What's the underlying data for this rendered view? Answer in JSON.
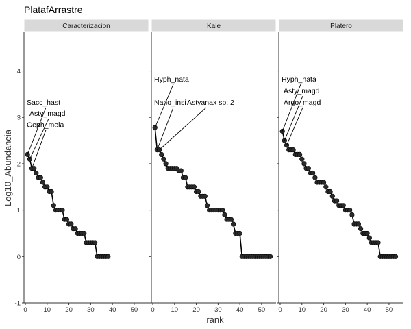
{
  "chart_data": {
    "type": "line",
    "title": "PlatafArrastre",
    "xlabel": "rank",
    "ylabel": "Log10_Abundancia",
    "xlim": [
      0,
      56
    ],
    "ylim": [
      -1,
      4.85
    ],
    "xticks": [
      0,
      10,
      20,
      30,
      40,
      50
    ],
    "yticks": [
      -1,
      0,
      1,
      2,
      3,
      4
    ],
    "grid": false,
    "colors": {
      "line": "#000000",
      "point_fill": "#2b2b2b",
      "strip_bg": "#d9d9d9",
      "strip_border": "#ffffff"
    },
    "panels": [
      {
        "name": "Caracterizacion",
        "x": [
          1,
          2,
          3,
          4,
          5,
          6,
          7,
          8,
          9,
          10,
          11,
          12,
          13,
          14,
          15,
          16,
          17,
          18,
          19,
          20,
          21,
          22,
          23,
          24,
          25,
          26,
          27,
          28,
          29,
          30,
          31,
          32,
          33,
          34,
          35,
          36,
          37,
          38
        ],
        "y": [
          2.2,
          2.1,
          1.9,
          1.9,
          1.8,
          1.7,
          1.7,
          1.6,
          1.5,
          1.5,
          1.4,
          1.4,
          1.1,
          1.0,
          1.0,
          1.0,
          1.0,
          0.8,
          0.8,
          0.7,
          0.7,
          0.6,
          0.6,
          0.5,
          0.5,
          0.5,
          0.5,
          0.3,
          0.3,
          0.3,
          0.3,
          0.3,
          0.0,
          0.0,
          0.0,
          0.0,
          0.0,
          0.0
        ],
        "labels": [
          {
            "text": "Sacc_hast",
            "rank": 1,
            "ty": 3.27
          },
          {
            "text": "Asty_magd",
            "rank": 2,
            "ty": 3.03
          },
          {
            "text": "Geph_mela",
            "rank": 3,
            "ty": 2.79
          }
        ]
      },
      {
        "name": "Kale",
        "x": [
          1,
          2,
          3,
          4,
          5,
          6,
          7,
          8,
          9,
          10,
          11,
          12,
          13,
          14,
          15,
          16,
          17,
          18,
          19,
          20,
          21,
          22,
          23,
          24,
          25,
          26,
          27,
          28,
          29,
          30,
          31,
          32,
          33,
          34,
          35,
          36,
          37,
          38,
          39,
          40,
          41,
          42,
          43,
          44,
          45,
          46,
          47,
          48,
          49,
          50,
          51,
          52,
          53,
          54
        ],
        "y": [
          2.78,
          2.3,
          2.3,
          2.2,
          2.1,
          2.0,
          1.9,
          1.9,
          1.9,
          1.9,
          1.9,
          1.85,
          1.85,
          1.7,
          1.7,
          1.5,
          1.5,
          1.5,
          1.5,
          1.4,
          1.4,
          1.3,
          1.3,
          1.3,
          1.1,
          1.0,
          1.0,
          1.0,
          1.0,
          1.0,
          1.0,
          1.0,
          0.9,
          0.8,
          0.8,
          0.8,
          0.7,
          0.5,
          0.5,
          0.5,
          0.0,
          0.0,
          0.0,
          0.0,
          0.0,
          0.0,
          0.0,
          0.0,
          0.0,
          0.0,
          0.0,
          0.0,
          0.0,
          0.0
        ],
        "labels": [
          {
            "text": "Hyph_nata",
            "rank": 1,
            "ty": 3.77
          },
          {
            "text": "Nano_insi",
            "rank": 2,
            "ty": 3.27
          },
          {
            "text": "Astyanax sp. 2",
            "rank": 3,
            "ty": 3.27
          }
        ]
      },
      {
        "name": "Platero",
        "x": [
          1,
          2,
          3,
          4,
          5,
          6,
          7,
          8,
          9,
          10,
          11,
          12,
          13,
          14,
          15,
          16,
          17,
          18,
          19,
          20,
          21,
          22,
          23,
          24,
          25,
          26,
          27,
          28,
          29,
          30,
          31,
          32,
          33,
          34,
          35,
          36,
          37,
          38,
          39,
          40,
          41,
          42,
          43,
          44,
          45,
          46,
          47,
          48,
          49,
          50,
          51,
          52,
          53
        ],
        "y": [
          2.7,
          2.5,
          2.4,
          2.3,
          2.3,
          2.3,
          2.2,
          2.2,
          2.2,
          2.1,
          2.0,
          1.9,
          1.9,
          1.8,
          1.8,
          1.7,
          1.6,
          1.6,
          1.6,
          1.6,
          1.5,
          1.4,
          1.4,
          1.3,
          1.2,
          1.2,
          1.1,
          1.1,
          1.1,
          1.0,
          1.0,
          1.0,
          0.9,
          0.7,
          0.7,
          0.7,
          0.6,
          0.5,
          0.5,
          0.5,
          0.4,
          0.3,
          0.3,
          0.3,
          0.3,
          0.0,
          0.0,
          0.0,
          0.0,
          0.0,
          0.0,
          0.0,
          0.0
        ],
        "labels": [
          {
            "text": "Hyph_nata",
            "rank": 1,
            "ty": 3.77
          },
          {
            "text": "Asty_magd",
            "rank": 2,
            "ty": 3.52
          },
          {
            "text": "Argo_magd",
            "rank": 3,
            "ty": 3.27
          }
        ]
      }
    ]
  }
}
